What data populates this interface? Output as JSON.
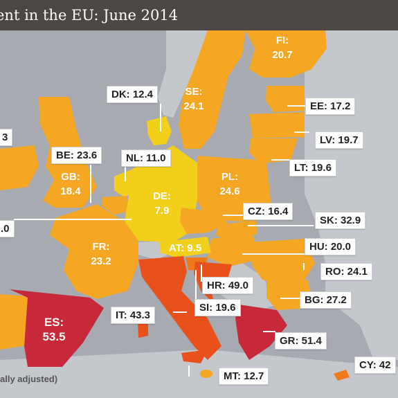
{
  "title": "ent in the EU: June 2014",
  "footnote": "ally adjusted)",
  "colors": {
    "sea": "#a7abb1",
    "non_eu": "#c4c7cb",
    "low": "#f2cf1a",
    "mid": "#f5a623",
    "high": "#f07a19",
    "very_high": "#e8501c",
    "extreme": "#c7283a",
    "title_bg": "#4b4744"
  },
  "labels": {
    "fi_code": "FI:",
    "fi_value": "20.7",
    "se_code": "SE:",
    "se_value": "24.1",
    "dk": "DK: 12.4",
    "ee": "EE: 17.2",
    "lv": "LV: 19.7",
    "lt": "LT: 19.6",
    "ie_partial": "3",
    "be": "BE: 23.6",
    "nl": "NL: 11.0",
    "gb_code": "GB:",
    "gb_value": "18.4",
    "de_code": "DE:",
    "de_value": "7.9",
    "pl_code": "PL:",
    "pl_value": "24.6",
    "lu_partial": ".0",
    "cz": "CZ: 16.4",
    "sk": "SK: 32.9",
    "fr_code": "FR:",
    "fr_value": "23.2",
    "at": "AT: 9.5",
    "hu": "HU: 20.0",
    "ro": "RO: 24.1",
    "hr": "HR: 49.0",
    "si": "SI: 19.6",
    "bg": "BG: 27.2",
    "es_code": "ES:",
    "es_value": "53.5",
    "it": "IT: 43.3",
    "gr": "GR: 51.4",
    "mt": "MT: 12.7",
    "cy": "CY: 42"
  }
}
